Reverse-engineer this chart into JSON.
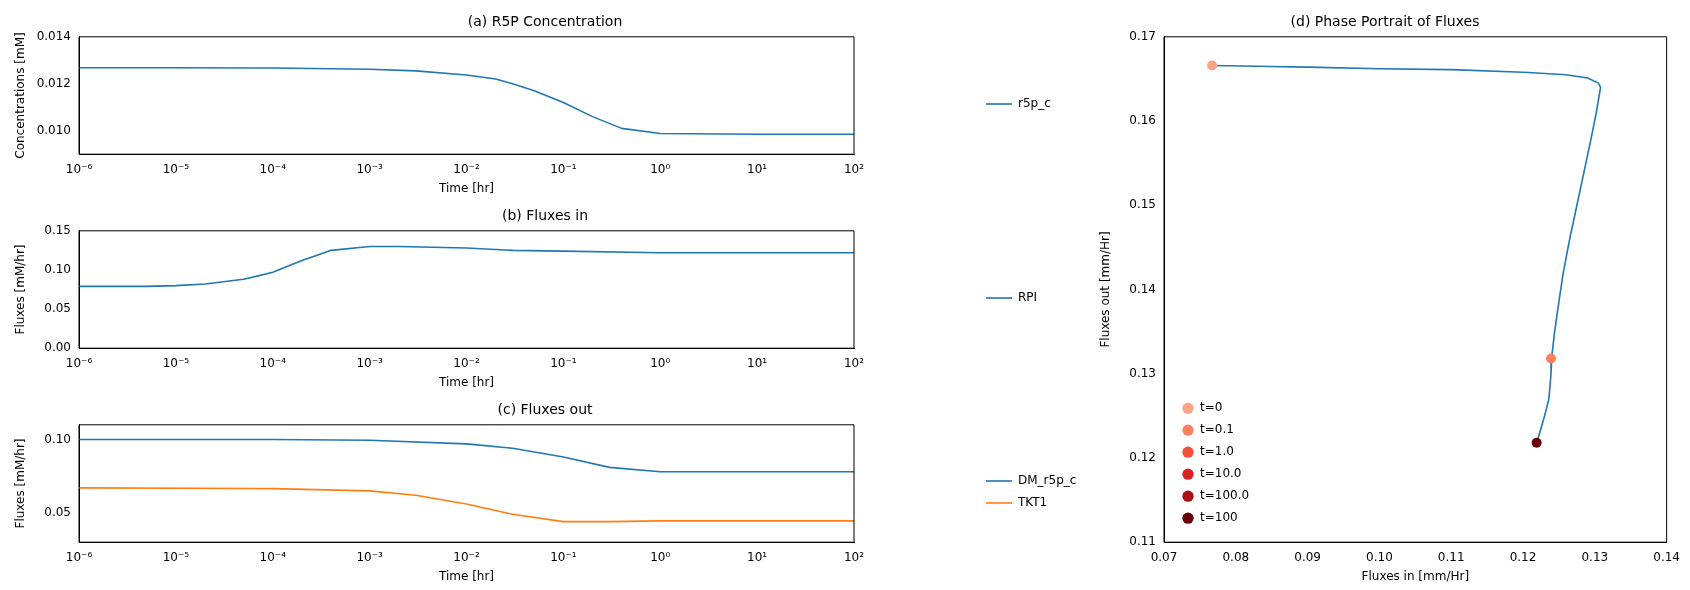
{
  "chart_data": [
    {
      "type": "line",
      "title": "(a) R5P Concentration",
      "xlabel": "Time [hr]",
      "ylabel": "Concentrations [mM]",
      "log": "x",
      "legend": "right",
      "xlim": [
        1e-06,
        100
      ],
      "xticks": [
        {
          "value": 1e-06,
          "label": "10⁻⁶"
        },
        {
          "value": 1e-05,
          "label": "10⁻⁵"
        },
        {
          "value": 0.0001,
          "label": "10⁻⁴"
        },
        {
          "value": 0.001,
          "label": "10⁻³"
        },
        {
          "value": 0.01,
          "label": "10⁻²"
        },
        {
          "value": 0.1,
          "label": "10⁻¹"
        },
        {
          "value": 1,
          "label": "10⁰"
        },
        {
          "value": 10,
          "label": "10¹"
        },
        {
          "value": 100,
          "label": "10²"
        }
      ],
      "ylim": [
        0.009,
        0.014
      ],
      "yticks": [
        {
          "value": 0.01,
          "label": "0.010"
        },
        {
          "value": 0.012,
          "label": "0.012"
        },
        {
          "value": 0.014,
          "label": "0.014"
        }
      ],
      "series": [
        {
          "name": "r5p_c",
          "color": "#1f77b4",
          "x": [
            1e-06,
            1e-05,
            0.0001,
            0.001,
            0.003,
            0.01,
            0.02,
            0.03,
            0.05,
            0.1,
            0.2,
            0.4,
            1,
            10,
            100
          ],
          "values": [
            0.01268,
            0.01268,
            0.01267,
            0.01262,
            0.01255,
            0.01237,
            0.0122,
            0.012,
            0.0117,
            0.0112,
            0.0106,
            0.0101,
            0.00988,
            0.00985,
            0.00985
          ]
        }
      ]
    },
    {
      "type": "line",
      "title": "(b) Fluxes in",
      "xlabel": "Time [hr]",
      "ylabel": "Fluxes [mM/hr]",
      "log": "x",
      "legend": "right",
      "xlim": [
        1e-06,
        100
      ],
      "xticks": [
        {
          "value": 1e-06,
          "label": "10⁻⁶"
        },
        {
          "value": 1e-05,
          "label": "10⁻⁵"
        },
        {
          "value": 0.0001,
          "label": "10⁻⁴"
        },
        {
          "value": 0.001,
          "label": "10⁻³"
        },
        {
          "value": 0.01,
          "label": "10⁻²"
        },
        {
          "value": 0.1,
          "label": "10⁻¹"
        },
        {
          "value": 1,
          "label": "10⁰"
        },
        {
          "value": 10,
          "label": "10¹"
        },
        {
          "value": 100,
          "label": "10²"
        }
      ],
      "ylim": [
        0,
        0.15
      ],
      "yticks": [
        {
          "value": 0,
          "label": "0.00"
        },
        {
          "value": 0.05,
          "label": "0.05"
        },
        {
          "value": 0.1,
          "label": "0.10"
        },
        {
          "value": 0.15,
          "label": "0.15"
        }
      ],
      "series": [
        {
          "name": "RPI",
          "color": "#1f77b4",
          "x": [
            1e-06,
            5e-06,
            1e-05,
            2e-05,
            5e-05,
            0.0001,
            0.0002,
            0.0004,
            0.001,
            0.002,
            0.01,
            0.03,
            0.1,
            1,
            100
          ],
          "values": [
            0.079,
            0.079,
            0.08,
            0.082,
            0.088,
            0.097,
            0.112,
            0.125,
            0.13,
            0.13,
            0.128,
            0.125,
            0.124,
            0.122,
            0.122
          ]
        }
      ]
    },
    {
      "type": "line",
      "title": "(c) Fluxes out",
      "xlabel": "Time [hr]",
      "ylabel": "Fluxes [mM/hr]",
      "log": "x",
      "legend": "right",
      "xlim": [
        1e-06,
        100
      ],
      "xticks": [
        {
          "value": 1e-06,
          "label": "10⁻⁶"
        },
        {
          "value": 1e-05,
          "label": "10⁻⁵"
        },
        {
          "value": 0.0001,
          "label": "10⁻⁴"
        },
        {
          "value": 0.001,
          "label": "10⁻³"
        },
        {
          "value": 0.01,
          "label": "10⁻²"
        },
        {
          "value": 0.1,
          "label": "10⁻¹"
        },
        {
          "value": 1,
          "label": "10⁰"
        },
        {
          "value": 10,
          "label": "10¹"
        },
        {
          "value": 100,
          "label": "10²"
        }
      ],
      "ylim": [
        0.03,
        0.11
      ],
      "yticks": [
        {
          "value": 0.05,
          "label": "0.05"
        },
        {
          "value": 0.1,
          "label": "0.10"
        }
      ],
      "series": [
        {
          "name": "DM_r5p_c",
          "color": "#1f77b4",
          "x": [
            1e-06,
            0.0001,
            0.001,
            0.01,
            0.03,
            0.1,
            0.3,
            1,
            100
          ],
          "values": [
            0.1,
            0.1,
            0.0995,
            0.097,
            0.094,
            0.088,
            0.081,
            0.078,
            0.078
          ]
        },
        {
          "name": "TKT1",
          "color": "#ff7f0e",
          "x": [
            1e-06,
            0.0001,
            0.001,
            0.003,
            0.01,
            0.03,
            0.1,
            0.3,
            1,
            100
          ],
          "values": [
            0.067,
            0.0665,
            0.065,
            0.062,
            0.056,
            0.049,
            0.044,
            0.044,
            0.0445,
            0.0445
          ]
        }
      ]
    },
    {
      "type": "scatter",
      "title": "(d) Phase Portrait of Fluxes",
      "xlabel": "Fluxes in [mm/Hr]",
      "ylabel": "Fluxes out [mm/Hr]",
      "legend": "bottom left",
      "marker": "circle",
      "xlim": [
        0.07,
        0.14
      ],
      "xticks": [
        0.07,
        0.08,
        0.09,
        {
          "value": 0.1,
          "label": "0.10"
        },
        0.11,
        0.12,
        0.13,
        0.14
      ],
      "ylim": [
        0.11,
        0.17
      ],
      "yticks": [
        0.11,
        0.12,
        0.13,
        0.14,
        0.15,
        0.16,
        0.17
      ],
      "series": [
        {
          "type": "line",
          "marker": "none",
          "color": "#1f77b4",
          "x": [
            0.0767,
            0.09,
            0.1,
            0.11,
            0.12,
            0.126,
            0.129,
            0.1305,
            0.1308,
            0.1302,
            0.1295,
            0.1285,
            0.1275,
            0.1265,
            0.1256,
            0.1249,
            0.1244,
            0.124,
            0.1239,
            0.1236,
            0.123,
            0.1225,
            0.1219
          ],
          "values": [
            0.1666,
            0.1664,
            0.1662,
            0.1661,
            0.1658,
            0.1655,
            0.1651,
            0.1645,
            0.164,
            0.161,
            0.158,
            0.154,
            0.15,
            0.146,
            0.142,
            0.138,
            0.135,
            0.132,
            0.13,
            0.127,
            0.125,
            0.1235,
            0.1218
          ]
        },
        {
          "name": "t=0",
          "color": "#fca486",
          "x": [
            0.0767
          ],
          "values": [
            0.1666
          ]
        },
        {
          "name": "t=0.1",
          "color": "#fc8161",
          "x": [
            0.1239
          ],
          "values": [
            0.1318
          ]
        },
        {
          "name": "t=1.0",
          "color": "#f44f39",
          "x": [
            null
          ],
          "values": [
            null
          ]
        },
        {
          "name": "t=10.0",
          "color": "#d52221",
          "x": [
            null
          ],
          "values": [
            null
          ]
        },
        {
          "name": "t=100.0",
          "color": "#aa1016",
          "x": [
            null
          ],
          "values": [
            null
          ]
        },
        {
          "name": "t=100",
          "color": "#67000d",
          "x": [
            0.1219
          ],
          "values": [
            0.1218
          ]
        }
      ]
    }
  ]
}
